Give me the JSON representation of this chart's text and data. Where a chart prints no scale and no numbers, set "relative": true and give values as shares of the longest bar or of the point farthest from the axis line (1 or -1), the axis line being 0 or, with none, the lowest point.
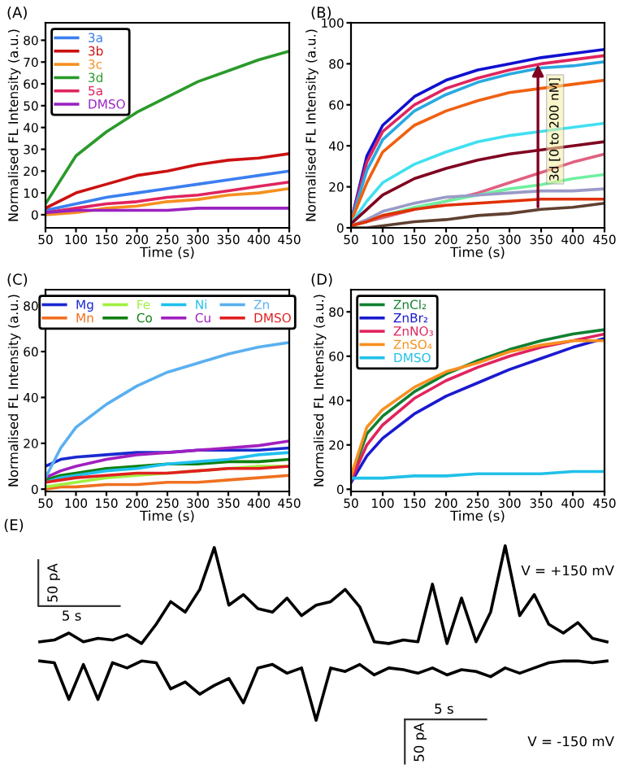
{
  "chart_data": [
    {
      "type": "line",
      "title": "(A)",
      "xlabel": "Time (s)",
      "ylabel": "Normalised FL Intensity (a.u.)",
      "xlim": [
        50,
        450
      ],
      "xticks": [
        50,
        100,
        150,
        200,
        250,
        300,
        350,
        400,
        450
      ],
      "ylim": [
        -6,
        88
      ],
      "yticks": [
        0,
        10,
        20,
        30,
        40,
        50,
        60,
        70,
        80
      ],
      "grid": false,
      "legend": "top left",
      "x": [
        50,
        100,
        150,
        200,
        250,
        300,
        350,
        400,
        450
      ],
      "series": [
        {
          "name": "3a",
          "color": "#3a7ff0",
          "values": [
            2,
            5,
            8,
            10,
            12,
            14,
            16,
            18,
            20
          ]
        },
        {
          "name": "3b",
          "color": "#cc1111",
          "values": [
            3,
            10,
            14,
            18,
            20,
            23,
            25,
            26,
            28
          ]
        },
        {
          "name": "3c",
          "color": "#f59020",
          "values": [
            0,
            1,
            3,
            4,
            6,
            7,
            9,
            10,
            12
          ]
        },
        {
          "name": "3d",
          "color": "#2a9a2a",
          "values": [
            5,
            27,
            38,
            47,
            54,
            61,
            66,
            71,
            75
          ]
        },
        {
          "name": "5a",
          "color": "#e0245e",
          "values": [
            1,
            3,
            5,
            6,
            8,
            9,
            11,
            13,
            15
          ]
        },
        {
          "name": "DMSO",
          "color": "#9a22c0",
          "values": [
            1,
            2,
            2,
            2,
            2,
            3,
            3,
            3,
            3
          ]
        }
      ]
    },
    {
      "type": "line",
      "title": "(B)",
      "xlabel": "Time (s)",
      "ylabel": "Normalised FL Intensity (a.u.)",
      "xlim": [
        50,
        450
      ],
      "xticks": [
        50,
        100,
        150,
        200,
        250,
        300,
        350,
        400,
        450
      ],
      "ylim": [
        0,
        100
      ],
      "yticks": [
        0,
        20,
        40,
        60,
        80,
        100
      ],
      "grid": false,
      "annotations": [
        "3d [0 to 200 nM]"
      ],
      "x": [
        50,
        75,
        100,
        150,
        200,
        250,
        300,
        350,
        400,
        450
      ],
      "series": [
        {
          "color": "#1010d0",
          "values": [
            3,
            35,
            50,
            64,
            72,
            77,
            80,
            83,
            85,
            87
          ]
        },
        {
          "color": "#e0245e",
          "values": [
            3,
            32,
            47,
            60,
            68,
            73,
            77,
            80,
            82,
            84
          ]
        },
        {
          "color": "#29a9e0",
          "values": [
            3,
            28,
            43,
            57,
            65,
            71,
            75,
            78,
            79,
            81
          ]
        },
        {
          "color": "#f06010",
          "values": [
            3,
            22,
            37,
            50,
            57,
            62,
            66,
            68,
            70,
            72
          ]
        },
        {
          "color": "#40e0f0",
          "values": [
            2,
            13,
            22,
            31,
            37,
            42,
            45,
            47,
            49,
            51
          ]
        },
        {
          "color": "#800020",
          "values": [
            2,
            9,
            16,
            24,
            29,
            33,
            36,
            38,
            40,
            42
          ]
        },
        {
          "color": "#e06080",
          "values": [
            1,
            3,
            5,
            9,
            13,
            17,
            22,
            27,
            32,
            36
          ]
        },
        {
          "color": "#70f0a0",
          "values": [
            1,
            3,
            6,
            10,
            13,
            16,
            19,
            21,
            24,
            26
          ]
        },
        {
          "color": "#9a9ac8",
          "values": [
            1,
            4,
            8,
            12,
            15,
            16,
            17,
            18,
            18,
            19
          ]
        },
        {
          "color": "#e03000",
          "values": [
            1,
            3,
            6,
            9,
            11,
            12,
            13,
            14,
            14,
            14
          ]
        },
        {
          "color": "#604030",
          "values": [
            0,
            0,
            1,
            3,
            4,
            6,
            7,
            9,
            10,
            12
          ]
        }
      ]
    },
    {
      "type": "line",
      "title": "(C)",
      "xlabel": "Time (s)",
      "ylabel": "Normalised FL Intensity (a.u.)",
      "xlim": [
        50,
        450
      ],
      "xticks": [
        50,
        100,
        150,
        200,
        250,
        300,
        350,
        400,
        450
      ],
      "ylim": [
        -1,
        87
      ],
      "yticks": [
        0,
        20,
        40,
        60,
        80
      ],
      "grid": false,
      "legend": "top",
      "x": [
        50,
        75,
        100,
        150,
        200,
        250,
        300,
        350,
        400,
        450
      ],
      "series": [
        {
          "name": "Mg",
          "color": "#1a2ad0",
          "values": [
            10,
            13,
            14,
            15,
            16,
            16,
            17,
            17,
            17,
            18
          ]
        },
        {
          "name": "Mn",
          "color": "#f07020",
          "values": [
            0,
            1,
            1,
            2,
            2,
            3,
            3,
            4,
            5,
            6
          ]
        },
        {
          "name": "Fe",
          "color": "#a0f040",
          "values": [
            1,
            2,
            3,
            5,
            6,
            7,
            8,
            9,
            10,
            10
          ]
        },
        {
          "name": "Co",
          "color": "#108010",
          "values": [
            4,
            6,
            7,
            9,
            10,
            11,
            11,
            12,
            12,
            13
          ]
        },
        {
          "name": "Ni",
          "color": "#20c0f0",
          "values": [
            3,
            5,
            6,
            8,
            9,
            11,
            12,
            13,
            15,
            16
          ]
        },
        {
          "name": "Cu",
          "color": "#a020c0",
          "values": [
            5,
            8,
            10,
            13,
            15,
            16,
            17,
            18,
            19,
            21
          ]
        },
        {
          "name": "Zn",
          "color": "#5ab0f0",
          "values": [
            5,
            18,
            27,
            37,
            45,
            51,
            55,
            59,
            62,
            64
          ]
        },
        {
          "name": "DMSO",
          "color": "#e02020",
          "values": [
            3,
            4,
            5,
            6,
            7,
            7,
            8,
            9,
            9,
            10
          ]
        }
      ]
    },
    {
      "type": "line",
      "title": "(D)",
      "xlabel": "Time (s)",
      "ylabel": "Normalised FL Intensity (a.u.)",
      "xlim": [
        50,
        450
      ],
      "xticks": [
        50,
        100,
        150,
        200,
        250,
        300,
        350,
        400,
        450
      ],
      "ylim": [
        -1,
        90
      ],
      "yticks": [
        0,
        20,
        40,
        60,
        80
      ],
      "grid": false,
      "legend": "top left",
      "x": [
        50,
        75,
        100,
        150,
        200,
        250,
        300,
        350,
        400,
        450
      ],
      "series": [
        {
          "name": "ZnCl₂",
          "color": "#108030",
          "values": [
            5,
            25,
            33,
            44,
            52,
            58,
            63,
            67,
            70,
            72
          ]
        },
        {
          "name": "ZnBr₂",
          "color": "#1a1ad0",
          "values": [
            3,
            15,
            23,
            34,
            42,
            48,
            54,
            59,
            64,
            68
          ]
        },
        {
          "name": "ZnNO₃",
          "color": "#e0245e",
          "values": [
            4,
            20,
            29,
            41,
            49,
            55,
            60,
            64,
            67,
            70
          ]
        },
        {
          "name": "ZnSO₄",
          "color": "#f89020",
          "values": [
            6,
            28,
            36,
            46,
            53,
            57,
            62,
            65,
            67,
            67
          ]
        },
        {
          "name": "DMSO",
          "color": "#20c0e8",
          "values": [
            5,
            5,
            5,
            6,
            6,
            7,
            7,
            7,
            8,
            8
          ]
        }
      ]
    },
    {
      "type": "line",
      "title": "(E)",
      "relative": true,
      "annotations": [
        "50 pA",
        "5 s",
        "V = +150 mV",
        "5 s",
        "50 pA",
        "V = -150 mV"
      ],
      "categories": [
        null,
        null,
        null,
        null,
        null,
        null,
        null,
        null,
        null,
        null,
        null,
        null,
        null,
        null,
        null,
        null,
        null,
        null,
        null,
        null,
        null,
        null,
        null,
        null,
        null,
        null,
        null,
        null,
        null,
        null,
        null,
        null,
        null,
        null,
        null,
        null,
        null,
        null,
        null,
        null
      ],
      "series": [
        {
          "color": "#000000",
          "values": [
            0.45,
            0.46,
            0.5,
            0.45,
            0.47,
            0.46,
            0.49,
            0.44,
            0.55,
            0.68,
            0.62,
            0.75,
            0.99,
            0.66,
            0.72,
            0.64,
            0.62,
            0.7,
            0.6,
            0.66,
            0.68,
            0.75,
            0.65,
            0.45,
            0.44,
            0.46,
            0.45,
            0.78,
            0.44,
            0.7,
            0.45,
            0.62,
            1.0,
            0.6,
            0.72,
            0.55,
            0.5,
            0.56,
            0.47,
            0.45
          ]
        },
        {
          "color": "#000000",
          "values": [
            0.34,
            0.33,
            0.12,
            0.32,
            0.12,
            0.33,
            0.3,
            0.34,
            0.33,
            0.18,
            0.22,
            0.15,
            0.2,
            0.24,
            0.1,
            0.3,
            0.32,
            0.27,
            0.3,
            0.0,
            0.3,
            0.28,
            0.32,
            0.26,
            0.3,
            0.29,
            0.27,
            0.3,
            0.26,
            0.29,
            0.28,
            0.25,
            0.3,
            0.27,
            0.3,
            0.33,
            0.34,
            0.34,
            0.33,
            0.34
          ]
        }
      ]
    }
  ]
}
